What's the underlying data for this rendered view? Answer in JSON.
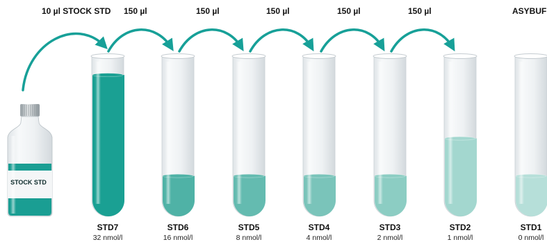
{
  "transfers": {
    "stock": "10 µl STOCK STD",
    "t1": "150 µl",
    "t2": "150 µl",
    "t3": "150 µl",
    "t4": "150 µl",
    "t5": "150 µl",
    "buffer": "ASYBUF"
  },
  "bottle": {
    "label": "STOCK STD"
  },
  "colors": {
    "arrow": "#17a098",
    "tube_glass": "#eef1f3",
    "bottle_liquid": "#1a9e93"
  },
  "tubes": [
    {
      "name": "STD7",
      "conc": "32 nmol/l",
      "fill_fraction": 0.98,
      "color": "#1aa093"
    },
    {
      "name": "STD6",
      "conc": "16 nmol/l",
      "fill_fraction": 0.28,
      "color": "#4fb2a6"
    },
    {
      "name": "STD5",
      "conc": "8 nmol/l",
      "fill_fraction": 0.28,
      "color": "#64bbb0"
    },
    {
      "name": "STD4",
      "conc": "4 nmol/l",
      "fill_fraction": 0.28,
      "color": "#7ac4ba"
    },
    {
      "name": "STD3",
      "conc": "2 nmol/l",
      "fill_fraction": 0.28,
      "color": "#8ccdc3"
    },
    {
      "name": "STD2",
      "conc": "1 nmol/l",
      "fill_fraction": 0.54,
      "color": "#a3d7cf"
    },
    {
      "name": "STD1",
      "conc": "0 nmol/l",
      "fill_fraction": 0.28,
      "color": "#b6dfd9"
    }
  ]
}
